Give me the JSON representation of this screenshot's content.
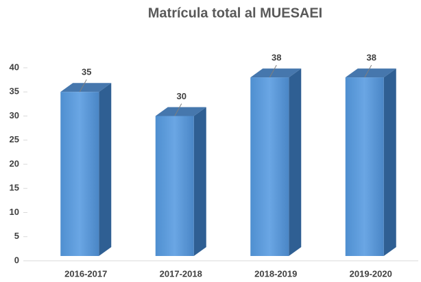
{
  "chart_data": {
    "type": "bar3d",
    "title": "Matrícula total al MUESAEI",
    "categories": [
      "2016-2017",
      "2017-2018",
      "2018-2019",
      "2019-2020"
    ],
    "values": [
      35,
      30,
      38,
      38
    ],
    "color": "#5b9bd5",
    "ylim": [
      0,
      40
    ],
    "yticks": [
      0,
      5,
      10,
      15,
      20,
      25,
      30,
      35,
      40
    ]
  }
}
